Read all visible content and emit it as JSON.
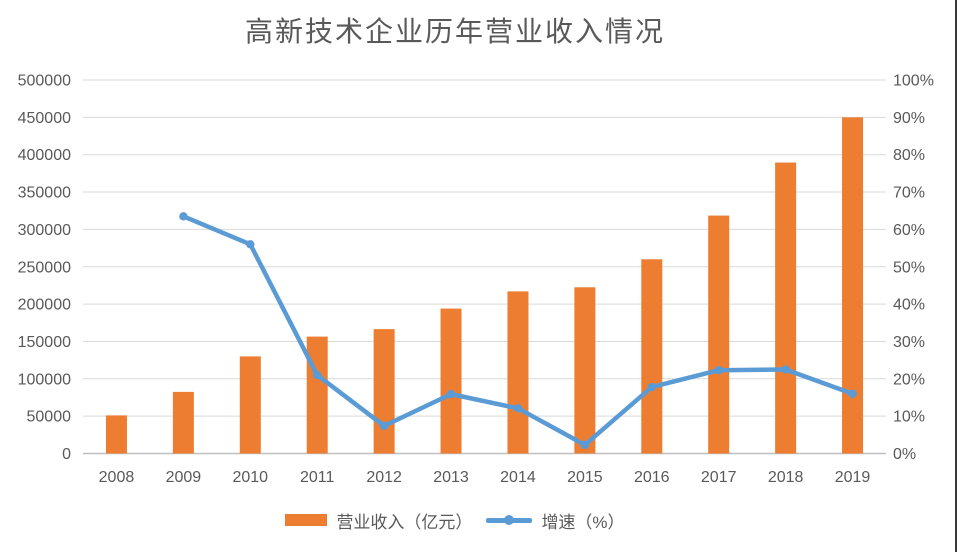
{
  "chart_data": {
    "type": "bar",
    "title": "高新技术企业历年营业收入情况",
    "categories": [
      "2008",
      "2009",
      "2010",
      "2011",
      "2012",
      "2013",
      "2014",
      "2015",
      "2016",
      "2017",
      "2018",
      "2019"
    ],
    "series": [
      {
        "name": "营业收入（亿元）",
        "type": "bar",
        "axis": "left",
        "color": "#ED7D31",
        "values": [
          51000,
          82500,
          130000,
          156500,
          166500,
          194000,
          217000,
          222500,
          260000,
          318500,
          389500,
          450000
        ]
      },
      {
        "name": "增速（%）",
        "type": "line",
        "axis": "right",
        "color": "#5B9BD5",
        "values": [
          null,
          63.5,
          56,
          21,
          7.4,
          15.9,
          12.1,
          2.3,
          17.8,
          22.3,
          22.5,
          16
        ]
      }
    ],
    "left_axis": {
      "min": 0,
      "max": 500000,
      "step": 50000,
      "ticks": [
        "0",
        "50000",
        "100000",
        "150000",
        "200000",
        "250000",
        "300000",
        "350000",
        "400000",
        "450000",
        "500000"
      ]
    },
    "right_axis": {
      "min": 0,
      "max": 100,
      "step": 10,
      "ticks": [
        "0%",
        "10%",
        "20%",
        "30%",
        "40%",
        "50%",
        "60%",
        "70%",
        "80%",
        "90%",
        "100%"
      ]
    },
    "grid": true,
    "legend_position": "bottom",
    "colors": {
      "gridline": "#D9D9D9",
      "axis_line": "#BFBFBF",
      "text": "#595959"
    }
  }
}
